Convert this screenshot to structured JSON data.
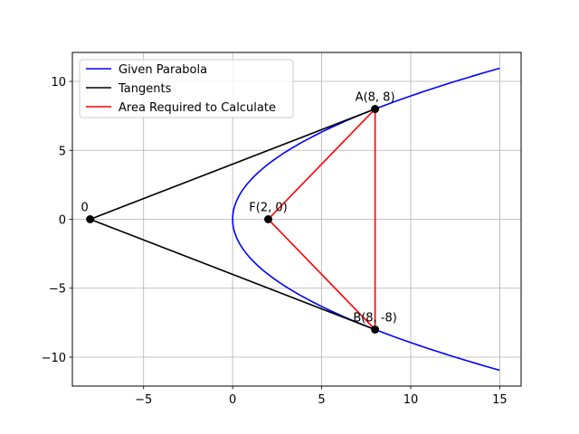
{
  "chart_data": {
    "type": "line",
    "xlim": [
      -9,
      16.2
    ],
    "ylim": [
      -12.1,
      12.1
    ],
    "grid": true,
    "legend_position": "top-left",
    "x_ticks": [
      -5,
      0,
      5,
      10,
      15
    ],
    "y_ticks": [
      -10,
      -5,
      0,
      5,
      10
    ],
    "x_tick_labels": [
      "−5",
      "0",
      "5",
      "10",
      "15"
    ],
    "y_tick_labels": [
      "−10",
      "−5",
      "0",
      "5",
      "10"
    ],
    "series": [
      {
        "name": "Given Parabola",
        "color": "#0000ff",
        "curve": "y^2 = 8x",
        "x_range": [
          0,
          15
        ],
        "points": [
          [
            15,
            -10.95
          ],
          [
            8,
            -8
          ],
          [
            2,
            -4
          ],
          [
            0.5,
            -2
          ],
          [
            0,
            0
          ],
          [
            0.5,
            2
          ],
          [
            2,
            4
          ],
          [
            8,
            8
          ],
          [
            15,
            10.95
          ]
        ]
      },
      {
        "name": "Tangents",
        "color": "#000000",
        "points": [
          [
            8,
            8
          ],
          [
            -8,
            0
          ],
          [
            8,
            -8
          ]
        ]
      },
      {
        "name": "Area Required to Calculate",
        "color": "#ff0000",
        "points": [
          [
            8,
            8
          ],
          [
            2,
            0
          ],
          [
            8,
            -8
          ],
          [
            8,
            8
          ]
        ]
      }
    ],
    "marked_points": [
      {
        "label": "A(8, 8)",
        "x": 8,
        "y": 8
      },
      {
        "label": "B(8, -8)",
        "x": 8,
        "y": -8
      },
      {
        "label": "F(2, 0)",
        "x": 2,
        "y": 0
      },
      {
        "label": "0",
        "x": -8,
        "y": 0
      }
    ]
  }
}
